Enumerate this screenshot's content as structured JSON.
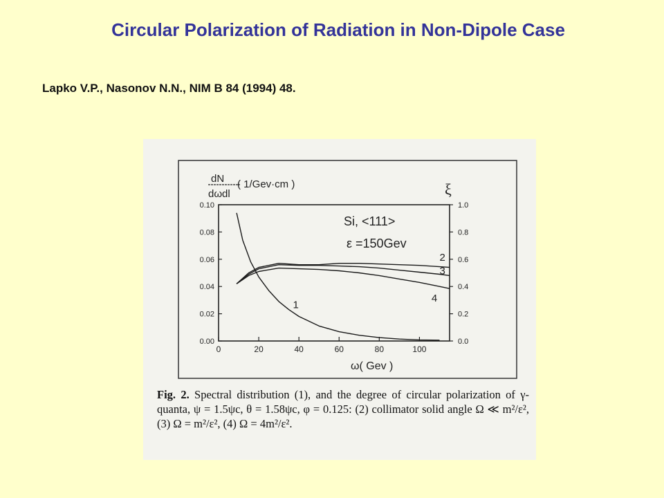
{
  "slide": {
    "title": "Circular Polarization of Radiation in Non-Dipole Case",
    "reference": "Lapko V.P., Nasonov N.N., NIM B 84 (1994) 48."
  },
  "figure": {
    "caption_label": "Fig. 2.",
    "caption_text": "Spectral distribution (1), and the degree of circular polarization of γ-quanta, ψ = 1.5ψc, θ = 1.58ψc, φ = 0.125: (2) collimator solid angle Ω ≪ m²/ε², (3) Ω = m²/ε², (4) Ω = 4m²/ε².",
    "annotation_crystal": "Si, <111>",
    "annotation_energy": "ε =150Gev"
  },
  "chart_data": {
    "type": "line",
    "xlabel": "ω( Gev )",
    "ylabel_left_num": "dN",
    "ylabel_left_den": "dωdl",
    "ylabel_left_unit": "( 1/Gev·cm )",
    "ylabel_right": "ξ",
    "xlim": [
      0,
      115
    ],
    "ylim_left": [
      0,
      0.1
    ],
    "ylim_right": [
      0,
      1.0
    ],
    "x_ticks": [
      "0",
      "20",
      "40",
      "60",
      "80",
      "100"
    ],
    "x_tick_values": [
      0,
      20,
      40,
      60,
      80,
      100
    ],
    "y_left_ticks": [
      "0.00",
      "0.02",
      "0.04",
      "0.06",
      "0.08",
      "0.10"
    ],
    "y_left_tick_values": [
      0,
      0.02,
      0.04,
      0.06,
      0.08,
      0.1
    ],
    "y_right_ticks": [
      "0.0",
      "0.2",
      "0.4",
      "0.6",
      "0.8",
      "1.0"
    ],
    "y_right_tick_values": [
      0,
      0.2,
      0.4,
      0.6,
      0.8,
      1.0
    ],
    "series": [
      {
        "name": "1",
        "axis": "left",
        "x": [
          9,
          12,
          16,
          20,
          25,
          30,
          35,
          40,
          45,
          50,
          60,
          70,
          80,
          90,
          100,
          110
        ],
        "y": [
          0.094,
          0.074,
          0.058,
          0.047,
          0.037,
          0.029,
          0.023,
          0.018,
          0.0145,
          0.011,
          0.0068,
          0.0042,
          0.0025,
          0.0014,
          0.0008,
          0.0006
        ]
      },
      {
        "name": "2",
        "axis": "right",
        "x": [
          9,
          15,
          20,
          30,
          40,
          50,
          60,
          70,
          80,
          90,
          100,
          110,
          115
        ],
        "y": [
          0.42,
          0.5,
          0.54,
          0.57,
          0.56,
          0.56,
          0.57,
          0.57,
          0.565,
          0.56,
          0.555,
          0.545,
          0.54
        ]
      },
      {
        "name": "3",
        "axis": "right",
        "x": [
          9,
          15,
          20,
          30,
          40,
          50,
          60,
          70,
          80,
          90,
          100,
          110,
          115
        ],
        "y": [
          0.42,
          0.49,
          0.53,
          0.56,
          0.555,
          0.555,
          0.55,
          0.545,
          0.535,
          0.52,
          0.505,
          0.49,
          0.48
        ]
      },
      {
        "name": "4",
        "axis": "right",
        "x": [
          9,
          15,
          20,
          30,
          40,
          50,
          60,
          70,
          80,
          90,
          100,
          110,
          115
        ],
        "y": [
          0.42,
          0.48,
          0.51,
          0.535,
          0.53,
          0.525,
          0.515,
          0.5,
          0.48,
          0.455,
          0.43,
          0.4,
          0.385
        ]
      }
    ],
    "curve_labels": [
      {
        "text": "1",
        "x": 37,
        "axis": "left",
        "y": 0.024
      },
      {
        "text": "2",
        "x": 110,
        "axis": "right",
        "y": 0.59
      },
      {
        "text": "3",
        "x": 110,
        "axis": "right",
        "y": 0.49
      },
      {
        "text": "4",
        "x": 106,
        "axis": "right",
        "y": 0.29
      }
    ]
  }
}
